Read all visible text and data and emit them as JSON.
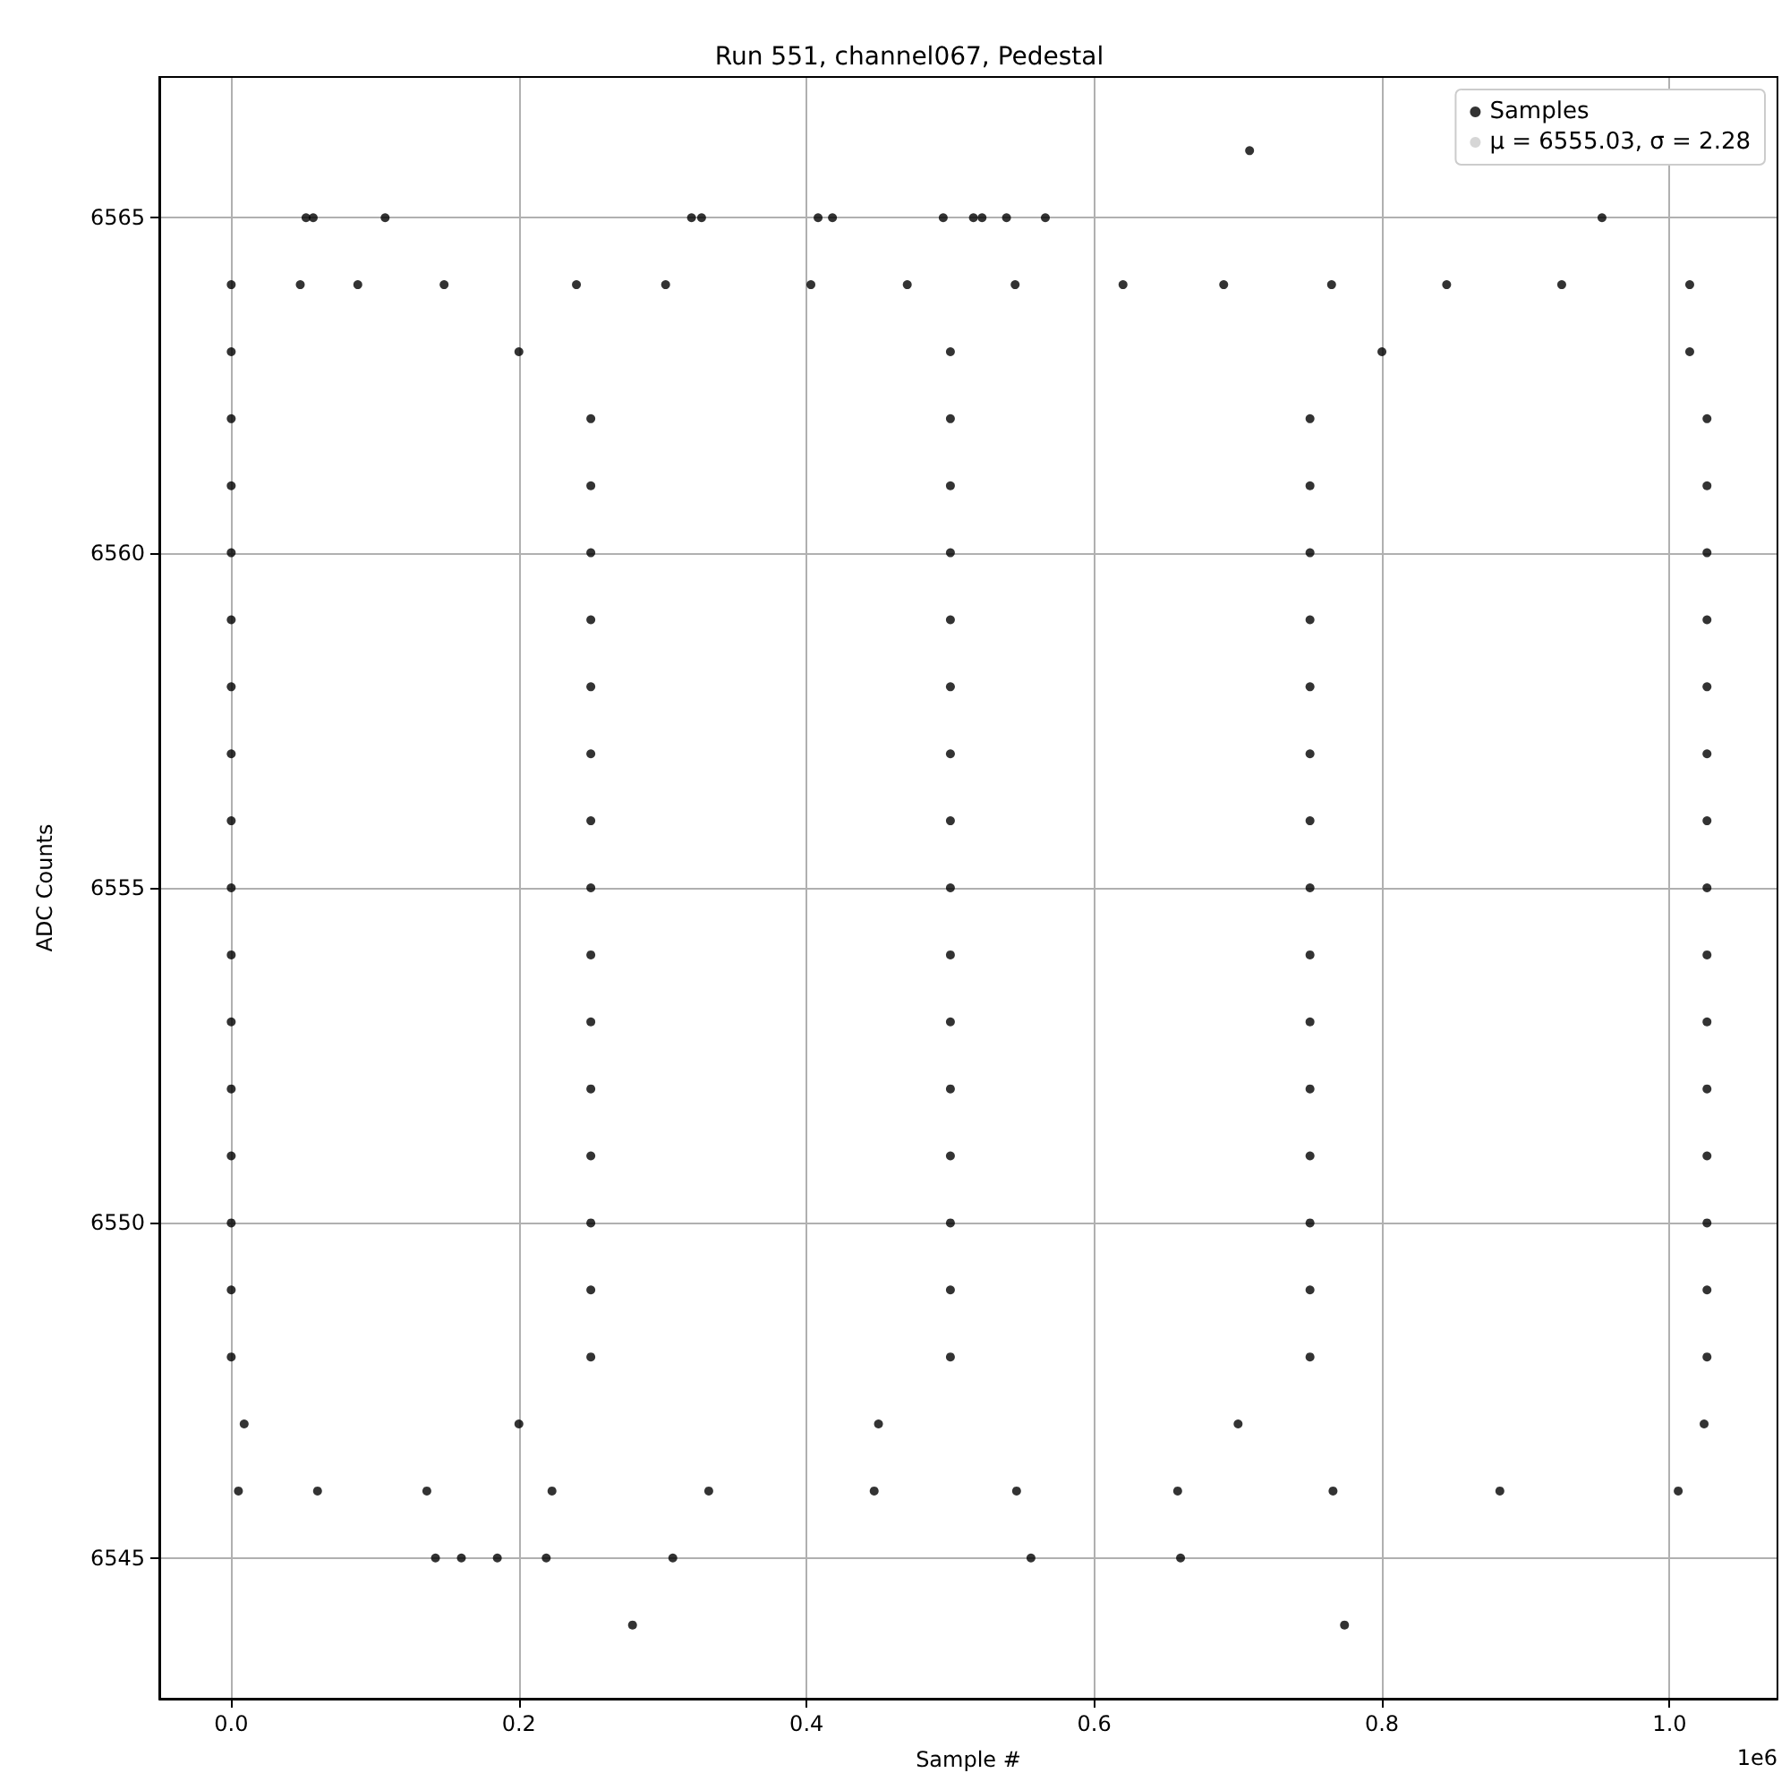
{
  "chart_data": {
    "type": "scatter",
    "title": "Run 551, channel067, Pedestal",
    "xlabel": "Sample #",
    "ylabel": "ADC Counts",
    "annotations": [
      "1e6"
    ],
    "xlim": [
      -0.05,
      1.075
    ],
    "xticks": [
      {
        "value": 0,
        "label": "0.0"
      },
      0.2,
      0.4,
      0.6,
      0.8,
      {
        "value": 1,
        "label": "1.0"
      }
    ],
    "ylim": [
      6542.9,
      6567.1
    ],
    "yticks": [
      6545,
      6550,
      6555,
      6560,
      6565
    ],
    "grid": true,
    "legend": "top right",
    "marker": "circle",
    "series": [
      {
        "name": "Samples",
        "color": "#000000",
        "x": [
          0.708,
          0.052,
          0.057,
          0.107,
          0.32,
          0.327,
          0.408,
          0.418,
          0.495,
          0.516,
          0.522,
          0.539,
          0.566,
          0.953,
          0,
          0.048,
          0.088,
          0.148,
          0.24,
          0.302,
          0.403,
          0.47,
          0.545,
          0.62,
          0.69,
          0.765,
          0.845,
          0.925,
          1.014,
          0,
          0.2,
          0.5,
          0.8,
          1.014,
          0,
          0.25,
          0.5,
          0.75,
          1.026,
          0,
          0.25,
          0.5,
          0.75,
          1.026,
          0,
          0.25,
          0.5,
          0.75,
          1.026,
          0,
          0.25,
          0.5,
          0.75,
          1.026,
          0,
          0.25,
          0.5,
          0.75,
          1.026,
          0,
          0.25,
          0.5,
          0.75,
          1.026,
          0,
          0.25,
          0.5,
          0.75,
          1.026,
          0,
          0.25,
          0.5,
          0.75,
          1.026,
          0,
          0.25,
          0.5,
          0.75,
          1.026,
          0,
          0.25,
          0.5,
          0.75,
          1.026,
          0,
          0.25,
          0.5,
          0.75,
          1.026,
          0,
          0.25,
          0.5,
          0.75,
          1.026,
          0,
          0.25,
          0.5,
          0.75,
          1.026,
          0,
          0.25,
          0.5,
          0.75,
          1.026,
          0,
          0.25,
          0.5,
          0.75,
          1.026,
          0.009,
          0.2,
          0.45,
          0.7,
          1.024,
          0.005,
          0.06,
          0.136,
          0.223,
          0.332,
          0.447,
          0.546,
          0.658,
          0.766,
          0.882,
          1.006,
          0.142,
          0.16,
          0.185,
          0.219,
          0.307,
          0.556,
          0.66,
          0.279,
          0.774
        ],
        "values": [
          6566,
          6565,
          6565,
          6565,
          6565,
          6565,
          6565,
          6565,
          6565,
          6565,
          6565,
          6565,
          6565,
          6565,
          6564,
          6564,
          6564,
          6564,
          6564,
          6564,
          6564,
          6564,
          6564,
          6564,
          6564,
          6564,
          6564,
          6564,
          6564,
          6563,
          6563,
          6563,
          6563,
          6563,
          6562,
          6562,
          6562,
          6562,
          6562,
          6561,
          6561,
          6561,
          6561,
          6561,
          6560,
          6560,
          6560,
          6560,
          6560,
          6559,
          6559,
          6559,
          6559,
          6559,
          6558,
          6558,
          6558,
          6558,
          6558,
          6557,
          6557,
          6557,
          6557,
          6557,
          6556,
          6556,
          6556,
          6556,
          6556,
          6555,
          6555,
          6555,
          6555,
          6555,
          6554,
          6554,
          6554,
          6554,
          6554,
          6553,
          6553,
          6553,
          6553,
          6553,
          6552,
          6552,
          6552,
          6552,
          6552,
          6551,
          6551,
          6551,
          6551,
          6551,
          6550,
          6550,
          6550,
          6550,
          6550,
          6549,
          6549,
          6549,
          6549,
          6549,
          6548,
          6548,
          6548,
          6548,
          6548,
          6547,
          6547,
          6547,
          6547,
          6547,
          6546,
          6546,
          6546,
          6546,
          6546,
          6546,
          6546,
          6546,
          6546,
          6546,
          6546,
          6545,
          6545,
          6545,
          6545,
          6545,
          6545,
          6545,
          6544,
          6544
        ]
      },
      {
        "name": "μ = 6555.03, σ = 2.28",
        "color": "#cccccc"
      }
    ]
  }
}
